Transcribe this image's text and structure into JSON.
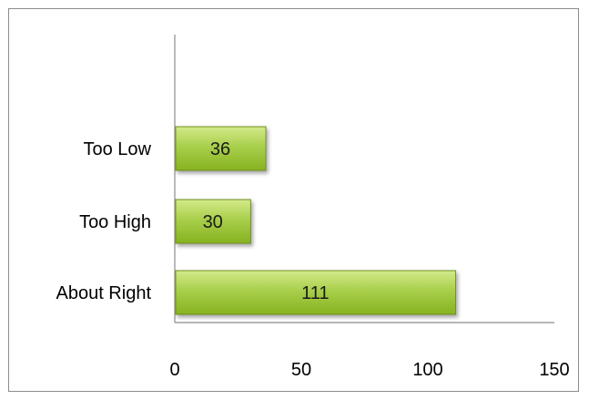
{
  "chart_data": {
    "type": "bar",
    "orientation": "horizontal",
    "categories": [
      "About Right",
      "Too High",
      "Too Low"
    ],
    "values": [
      111,
      30,
      36
    ],
    "data_labels": [
      "111",
      "30",
      "36"
    ],
    "x_ticks": [
      "0",
      "50",
      "100",
      "150"
    ],
    "xlim": [
      0,
      150
    ],
    "grid": false,
    "legend": "none",
    "colors": {
      "bar_fill_top": "#d4ea8a",
      "bar_fill_mid": "#a9cf4c",
      "bar_fill_bottom": "#86b21f",
      "bar_stroke": "#6f8f22",
      "axis": "#8c8c8c",
      "frame_border": "#8c8c8c"
    }
  }
}
